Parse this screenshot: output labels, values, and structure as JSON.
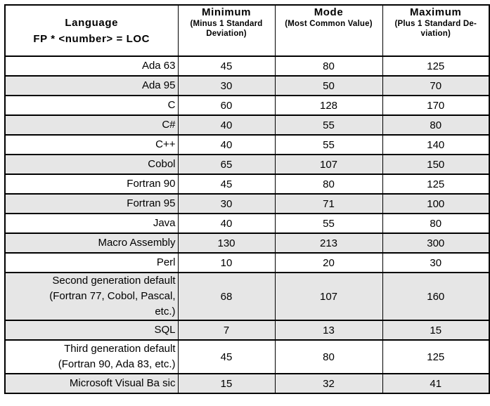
{
  "table": {
    "header": {
      "language": {
        "title_block": "Language\nFP * <number> = LOC"
      },
      "minimum": {
        "title": "Minimum",
        "subtitle": "(Minus 1 Standard\nDeviation)"
      },
      "mode": {
        "title": "Mode",
        "subtitle": "(Most Common Value)"
      },
      "maximum": {
        "title": "Maximum",
        "subtitle": "(Plus 1 Standard De-\nviation)"
      }
    },
    "rows": [
      {
        "language": "Ada 63",
        "minimum": "45",
        "mode": "80",
        "maximum": "125",
        "shaded": false
      },
      {
        "language": "Ada 95",
        "minimum": "30",
        "mode": "50",
        "maximum": "70",
        "shaded": true
      },
      {
        "language": "C",
        "minimum": "60",
        "mode": "128",
        "maximum": "170",
        "shaded": false
      },
      {
        "language": "C#",
        "minimum": "40",
        "mode": "55",
        "maximum": "80",
        "shaded": true
      },
      {
        "language": "C++",
        "minimum": "40",
        "mode": "55",
        "maximum": "140",
        "shaded": false
      },
      {
        "language": "Cobol",
        "minimum": "65",
        "mode": "107",
        "maximum": "150",
        "shaded": true
      },
      {
        "language": "Fortran 90",
        "minimum": "45",
        "mode": "80",
        "maximum": "125",
        "shaded": false
      },
      {
        "language": "Fortran 95",
        "minimum": "30",
        "mode": "71",
        "maximum": "100",
        "shaded": true
      },
      {
        "language": "Java",
        "minimum": "40",
        "mode": "55",
        "maximum": "80",
        "shaded": false
      },
      {
        "language": "Macro Assembly",
        "minimum": "130",
        "mode": "213",
        "maximum": "300",
        "shaded": true
      },
      {
        "language": "Perl",
        "minimum": "10",
        "mode": "20",
        "maximum": "30",
        "shaded": false
      },
      {
        "language": "Second generation default\n(Fortran 77, Cobol, Pascal,\netc.)",
        "minimum": "68",
        "mode": "107",
        "maximum": "160",
        "shaded": true
      },
      {
        "language": "SQL",
        "minimum": "7",
        "mode": "13",
        "maximum": "15",
        "shaded": true
      },
      {
        "language": "Third generation default\n(Fortran 90, Ada 83, etc.)",
        "minimum": "45",
        "mode": "80",
        "maximum": "125",
        "shaded": false
      },
      {
        "language": "Microsoft Visual Ba sic",
        "minimum": "15",
        "mode": "32",
        "maximum": "41",
        "shaded": true
      }
    ]
  },
  "colors": {
    "row_shade": "#e6e6e6",
    "border": "#000000",
    "background": "#ffffff",
    "text": "#000000"
  }
}
